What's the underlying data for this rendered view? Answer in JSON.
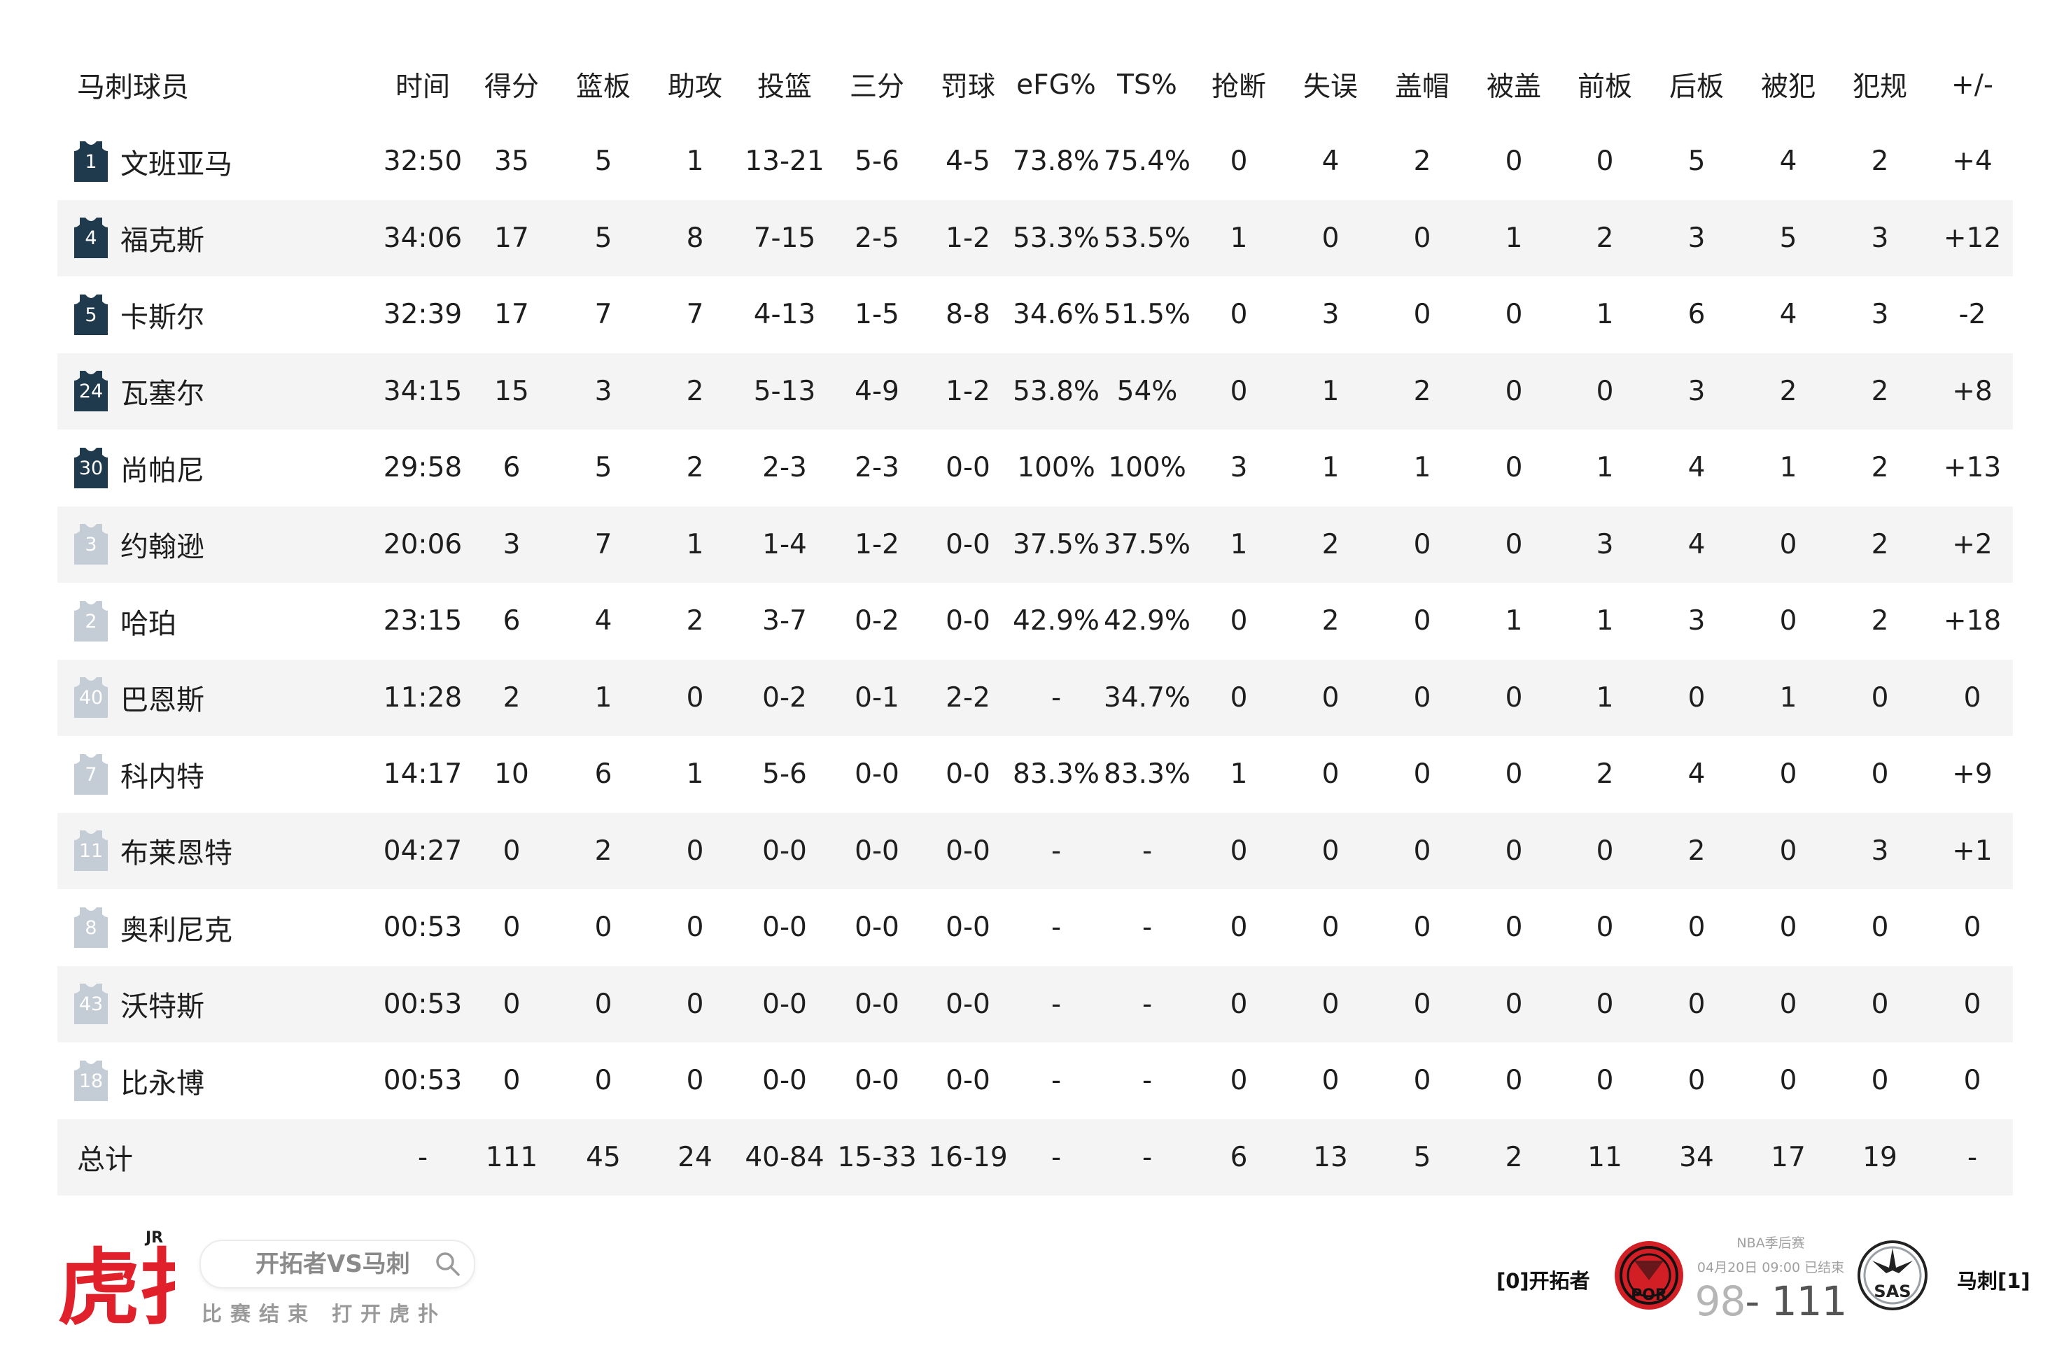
{
  "table": {
    "headers": [
      "马刺球员",
      "时间",
      "得分",
      "篮板",
      "助攻",
      "投篮",
      "三分",
      "罚球",
      "eFG%",
      "TS%",
      "抢断",
      "失误",
      "盖帽",
      "被盖",
      "前板",
      "后板",
      "被犯",
      "犯规",
      "+/-"
    ],
    "players": [
      {
        "number": "1",
        "starter": true,
        "name": "文班亚马",
        "stats": [
          "32:50",
          "35",
          "5",
          "1",
          "13-21",
          "5-6",
          "4-5",
          "73.8%",
          "75.4%",
          "0",
          "4",
          "2",
          "0",
          "0",
          "5",
          "4",
          "2",
          "+4"
        ]
      },
      {
        "number": "4",
        "starter": true,
        "name": "福克斯",
        "stats": [
          "34:06",
          "17",
          "5",
          "8",
          "7-15",
          "2-5",
          "1-2",
          "53.3%",
          "53.5%",
          "1",
          "0",
          "0",
          "1",
          "2",
          "3",
          "5",
          "3",
          "+12"
        ]
      },
      {
        "number": "5",
        "starter": true,
        "name": "卡斯尔",
        "stats": [
          "32:39",
          "17",
          "7",
          "7",
          "4-13",
          "1-5",
          "8-8",
          "34.6%",
          "51.5%",
          "0",
          "3",
          "0",
          "0",
          "1",
          "6",
          "4",
          "3",
          "-2"
        ]
      },
      {
        "number": "24",
        "starter": true,
        "name": "瓦塞尔",
        "stats": [
          "34:15",
          "15",
          "3",
          "2",
          "5-13",
          "4-9",
          "1-2",
          "53.8%",
          "54%",
          "0",
          "1",
          "2",
          "0",
          "0",
          "3",
          "2",
          "2",
          "+8"
        ]
      },
      {
        "number": "30",
        "starter": true,
        "name": "尚帕尼",
        "stats": [
          "29:58",
          "6",
          "5",
          "2",
          "2-3",
          "2-3",
          "0-0",
          "100%",
          "100%",
          "3",
          "1",
          "1",
          "0",
          "1",
          "4",
          "1",
          "2",
          "+13"
        ]
      },
      {
        "number": "3",
        "starter": false,
        "name": "约翰逊",
        "stats": [
          "20:06",
          "3",
          "7",
          "1",
          "1-4",
          "1-2",
          "0-0",
          "37.5%",
          "37.5%",
          "1",
          "2",
          "0",
          "0",
          "3",
          "4",
          "0",
          "2",
          "+2"
        ]
      },
      {
        "number": "2",
        "starter": false,
        "name": "哈珀",
        "stats": [
          "23:15",
          "6",
          "4",
          "2",
          "3-7",
          "0-2",
          "0-0",
          "42.9%",
          "42.9%",
          "0",
          "2",
          "0",
          "1",
          "1",
          "3",
          "0",
          "2",
          "+18"
        ]
      },
      {
        "number": "40",
        "starter": false,
        "name": "巴恩斯",
        "stats": [
          "11:28",
          "2",
          "1",
          "0",
          "0-2",
          "0-1",
          "2-2",
          "-",
          "34.7%",
          "0",
          "0",
          "0",
          "0",
          "1",
          "0",
          "1",
          "0",
          "0"
        ]
      },
      {
        "number": "7",
        "starter": false,
        "name": "科内特",
        "stats": [
          "14:17",
          "10",
          "6",
          "1",
          "5-6",
          "0-0",
          "0-0",
          "83.3%",
          "83.3%",
          "1",
          "0",
          "0",
          "0",
          "2",
          "4",
          "0",
          "0",
          "+9"
        ]
      },
      {
        "number": "11",
        "starter": false,
        "name": "布莱恩特",
        "stats": [
          "04:27",
          "0",
          "2",
          "0",
          "0-0",
          "0-0",
          "0-0",
          "-",
          "-",
          "0",
          "0",
          "0",
          "0",
          "0",
          "2",
          "0",
          "3",
          "+1"
        ]
      },
      {
        "number": "8",
        "starter": false,
        "name": "奥利尼克",
        "stats": [
          "00:53",
          "0",
          "0",
          "0",
          "0-0",
          "0-0",
          "0-0",
          "-",
          "-",
          "0",
          "0",
          "0",
          "0",
          "0",
          "0",
          "0",
          "0",
          "0"
        ]
      },
      {
        "number": "43",
        "starter": false,
        "name": "沃特斯",
        "stats": [
          "00:53",
          "0",
          "0",
          "0",
          "0-0",
          "0-0",
          "0-0",
          "-",
          "-",
          "0",
          "0",
          "0",
          "0",
          "0",
          "0",
          "0",
          "0",
          "0"
        ]
      },
      {
        "number": "18",
        "starter": false,
        "name": "比永博",
        "stats": [
          "00:53",
          "0",
          "0",
          "0",
          "0-0",
          "0-0",
          "0-0",
          "-",
          "-",
          "0",
          "0",
          "0",
          "0",
          "0",
          "0",
          "0",
          "0",
          "0"
        ]
      }
    ],
    "total": {
      "label": "总计",
      "stats": [
        "-",
        "111",
        "45",
        "24",
        "40-84",
        "15-33",
        "16-19",
        "-",
        "-",
        "6",
        "13",
        "5",
        "2",
        "11",
        "34",
        "17",
        "19",
        "-"
      ]
    }
  },
  "footer": {
    "brand_logo_text": "虎扑",
    "brand_logo_sup": "JR",
    "search_text": "开拓者VS马刺",
    "slogan": "比赛结束 打开虎扑",
    "left_team": "[0]开拓者",
    "right_team": "马刺[1]",
    "left_logo_text": "POR",
    "right_logo_text": "SAS",
    "stage": "NBA季后赛",
    "datetime": "04月20日 09:00 已结束",
    "score_left": "98",
    "score_sep": "-",
    "score_right": "111"
  },
  "colors": {
    "starter_jersey": "#1f3a4d",
    "bench_jersey": "#c4ccd6",
    "alt_row": "#f4f4f4",
    "logo_red": "#e0202a"
  }
}
